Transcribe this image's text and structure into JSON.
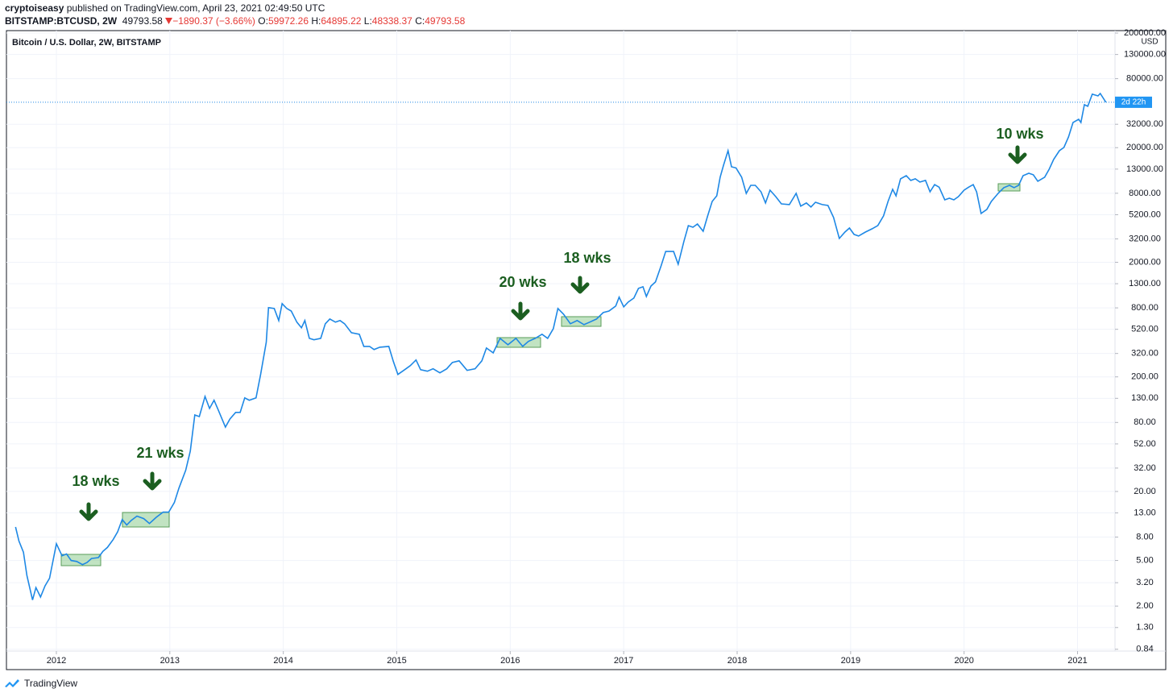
{
  "header": {
    "publisher": "cryptoiseasy",
    "published": "published on TradingView.com, April 23, 2021 02:49:50 UTC",
    "symbol": "BITSTAMP:BTCUSD, 2W",
    "last": "49793.58",
    "change": "−1890.37 (−3.66%)",
    "ohlc": [
      {
        "label": "O:",
        "value": "59972.26"
      },
      {
        "label": "H:",
        "value": "64895.22"
      },
      {
        "label": "L:",
        "value": "48338.37"
      },
      {
        "label": "C:",
        "value": "49793.58"
      }
    ]
  },
  "chart_data": {
    "type": "line",
    "title": "Bitcoin / U.S. Dollar, 2W, BITSTAMP",
    "unit": "USD",
    "countdown": "2d 22h",
    "log_scale": true,
    "grid": true,
    "x": [
      2011.64,
      2011.67,
      2011.71,
      2011.74,
      2011.79,
      2011.82,
      2011.86,
      2011.9,
      2011.94,
      2012.0,
      2012.05,
      2012.09,
      2012.13,
      2012.18,
      2012.23,
      2012.27,
      2012.31,
      2012.37,
      2012.41,
      2012.45,
      2012.5,
      2012.54,
      2012.58,
      2012.62,
      2012.66,
      2012.71,
      2012.77,
      2012.82,
      2012.88,
      2012.94,
      2012.99,
      2013.04,
      2013.08,
      2013.14,
      2013.18,
      2013.22,
      2013.26,
      2013.31,
      2013.35,
      2013.39,
      2013.43,
      2013.49,
      2013.53,
      2013.58,
      2013.62,
      2013.66,
      2013.7,
      2013.76,
      2013.8,
      2013.85,
      2013.87,
      2013.92,
      2013.96,
      2013.99,
      2014.03,
      2014.07,
      2014.12,
      2014.16,
      2014.19,
      2014.23,
      2014.27,
      2014.33,
      2014.37,
      2014.41,
      2014.46,
      2014.5,
      2014.54,
      2014.6,
      2014.67,
      2014.71,
      2014.76,
      2014.8,
      2014.85,
      2014.93,
      2014.97,
      2015.01,
      2015.07,
      2015.12,
      2015.17,
      2015.21,
      2015.27,
      2015.32,
      2015.38,
      2015.44,
      2015.49,
      2015.55,
      2015.62,
      2015.69,
      2015.75,
      2015.79,
      2015.85,
      2015.91,
      2015.98,
      2016.05,
      2016.11,
      2016.16,
      2016.22,
      2016.28,
      2016.33,
      2016.38,
      2016.42,
      2016.47,
      2016.53,
      2016.59,
      2016.65,
      2016.7,
      2016.76,
      2016.82,
      2016.87,
      2016.93,
      2016.96,
      2017.0,
      2017.04,
      2017.09,
      2017.13,
      2017.17,
      2017.2,
      2017.24,
      2017.28,
      2017.33,
      2017.37,
      2017.44,
      2017.48,
      2017.53,
      2017.57,
      2017.61,
      2017.65,
      2017.7,
      2017.74,
      2017.78,
      2017.82,
      2017.85,
      2017.88,
      2017.92,
      2017.95,
      2017.99,
      2018.04,
      2018.08,
      2018.12,
      2018.16,
      2018.21,
      2018.25,
      2018.29,
      2018.34,
      2018.39,
      2018.46,
      2018.52,
      2018.56,
      2018.61,
      2018.65,
      2018.69,
      2018.75,
      2018.8,
      2018.85,
      2018.9,
      2018.95,
      2018.99,
      2019.03,
      2019.07,
      2019.13,
      2019.19,
      2019.24,
      2019.29,
      2019.33,
      2019.37,
      2019.4,
      2019.44,
      2019.49,
      2019.53,
      2019.57,
      2019.61,
      2019.66,
      2019.7,
      2019.74,
      2019.78,
      2019.83,
      2019.87,
      2019.91,
      2019.95,
      2020.0,
      2020.04,
      2020.08,
      2020.11,
      2020.15,
      2020.2,
      2020.24,
      2020.3,
      2020.35,
      2020.4,
      2020.44,
      2020.48,
      2020.52,
      2020.57,
      2020.61,
      2020.65,
      2020.71,
      2020.75,
      2020.79,
      2020.84,
      2020.88,
      2020.92,
      2020.96,
      2021.01,
      2021.03,
      2021.06,
      2021.09,
      2021.13,
      2021.18,
      2021.2,
      2021.25
    ],
    "series": [
      {
        "name": "BTCUSD",
        "color": "#1e88e5",
        "values": [
          9.8,
          7.4,
          5.9,
          3.7,
          2.26,
          2.9,
          2.4,
          3.0,
          3.5,
          7.0,
          5.5,
          5.7,
          5.0,
          4.9,
          4.6,
          4.8,
          5.2,
          5.3,
          6.0,
          6.5,
          7.6,
          8.9,
          11.4,
          10.2,
          11.2,
          12.2,
          11.6,
          10.5,
          11.9,
          13.2,
          13.2,
          16,
          21.4,
          30.6,
          45,
          93,
          90,
          135,
          106,
          125,
          101,
          73,
          86,
          98,
          98,
          131,
          125,
          131,
          210,
          401,
          803,
          791,
          620,
          871,
          791,
          751,
          600,
          536,
          620,
          434,
          421,
          434,
          581,
          640,
          600,
          620,
          581,
          486,
          471,
          369,
          369,
          346,
          363,
          369,
          272,
          210,
          231,
          251,
          281,
          231,
          224,
          235,
          217,
          235,
          267,
          276,
          228,
          235,
          276,
          357,
          324,
          434,
          381,
          434,
          369,
          408,
          434,
          471,
          434,
          527,
          791,
          705,
          581,
          620,
          571,
          600,
          640,
          728,
          751,
          830,
          991,
          817,
          900,
          975,
          1183,
          1222,
          1007,
          1241,
          1346,
          1862,
          2489,
          2482,
          1923,
          3027,
          4178,
          4046,
          4315,
          3731,
          5080,
          6790,
          7603,
          11040,
          14060,
          18820,
          13610,
          13300,
          11040,
          7980,
          9380,
          9380,
          8240,
          6580,
          8510,
          7480,
          6470,
          6370,
          7980,
          6180,
          6580,
          6070,
          6680,
          6370,
          6260,
          4920,
          3230,
          3670,
          3980,
          3500,
          3390,
          3670,
          3920,
          4180,
          5080,
          6790,
          8670,
          7600,
          10690,
          11400,
          10350,
          10690,
          10020,
          10350,
          8240,
          9520,
          9040,
          7010,
          7240,
          7010,
          7480,
          8510,
          9040,
          9520,
          8240,
          5330,
          5780,
          6790,
          7980,
          8950,
          9380,
          8950,
          9380,
          11400,
          11970,
          11600,
          10190,
          11040,
          12970,
          15790,
          18820,
          20090,
          24780,
          33190,
          35400,
          33190,
          47400,
          45900,
          58500,
          56600,
          59400,
          49793.58
        ]
      }
    ],
    "xlim": [
      2011.56,
      2021.33
    ],
    "xticks": [
      2012,
      2013,
      2014,
      2015,
      2016,
      2017,
      2018,
      2019,
      2020,
      2021
    ],
    "ylim": [
      0.81,
      210000
    ],
    "yticks": [
      {
        "value": 200000,
        "label": "200000.00"
      },
      {
        "value": 130000,
        "label": "130000.00"
      },
      {
        "value": 80000,
        "label": "80000.00"
      },
      {
        "value": 32000,
        "label": "32000.00"
      },
      {
        "value": 20000,
        "label": "20000.00"
      },
      {
        "value": 13000,
        "label": "13000.00"
      },
      {
        "value": 8000,
        "label": "8000.00"
      },
      {
        "value": 5200,
        "label": "5200.00"
      },
      {
        "value": 3200,
        "label": "3200.00"
      },
      {
        "value": 2000,
        "label": "2000.00"
      },
      {
        "value": 1300,
        "label": "1300.00"
      },
      {
        "value": 800,
        "label": "800.00"
      },
      {
        "value": 520,
        "label": "520.00"
      },
      {
        "value": 320,
        "label": "320.00"
      },
      {
        "value": 200,
        "label": "200.00"
      },
      {
        "value": 130,
        "label": "130.00"
      },
      {
        "value": 80,
        "label": "80.00"
      },
      {
        "value": 52,
        "label": "52.00"
      },
      {
        "value": 32,
        "label": "32.00"
      },
      {
        "value": 20,
        "label": "20.00"
      },
      {
        "value": 13,
        "label": "13.00"
      },
      {
        "value": 8,
        "label": "8.00"
      },
      {
        "value": 5,
        "label": "5.00"
      },
      {
        "value": 3.2,
        "label": "3.20"
      },
      {
        "value": 2,
        "label": "2.00"
      },
      {
        "value": 1.3,
        "label": "1.30"
      },
      {
        "value": 0.84,
        "label": "0.84"
      }
    ],
    "annotations": [
      "18 wks",
      "21 wks",
      "20 wks",
      "18 wks",
      "10 wks"
    ]
  },
  "footer": {
    "brand": "TradingView"
  }
}
